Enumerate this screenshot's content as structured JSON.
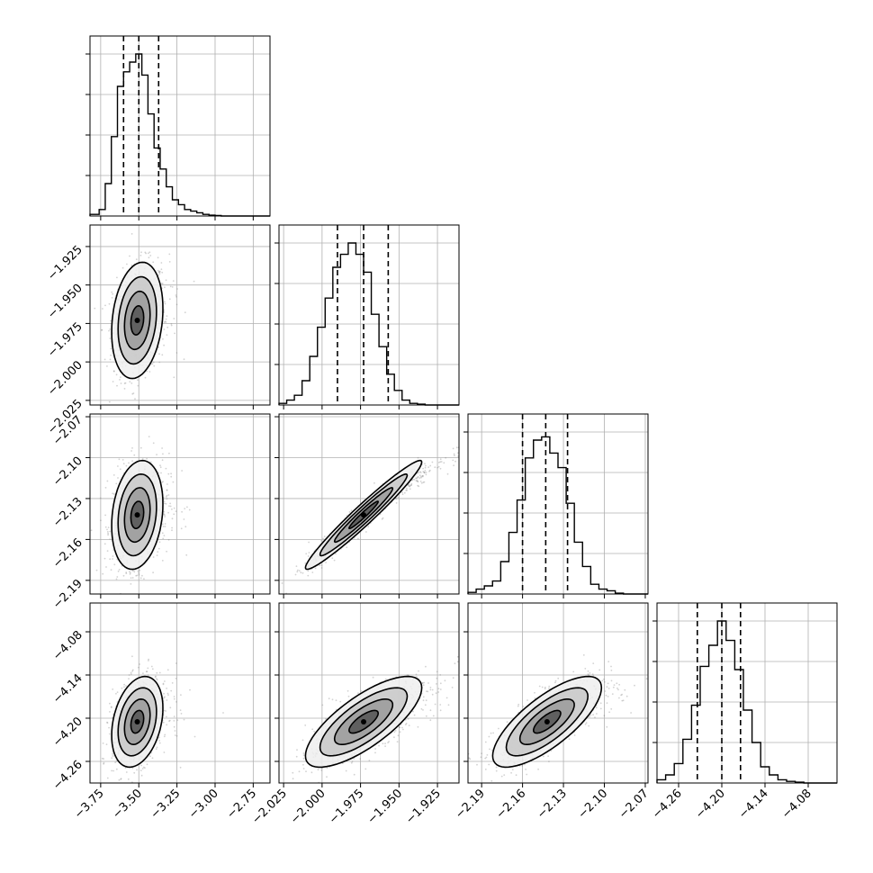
{
  "colors": {
    "ink": "#000000",
    "grid": "#b0b0b0",
    "scatter": "#7f7f7f",
    "bg": "#ffffff"
  },
  "chart_data": {
    "type": "corner",
    "n_params": 4,
    "grid": true,
    "quantiles": [
      0.16,
      0.5,
      0.84
    ],
    "params": [
      {
        "range": [
          -3.82,
          -2.64
        ],
        "ticks": [
          -3.75,
          -3.5,
          -3.25,
          -3.0,
          -2.75
        ],
        "tick_labels": [
          "−3.75",
          "−3.50",
          "−3.25",
          "−3.00",
          "−2.75"
        ],
        "quantile_values": [
          -3.6,
          -3.5,
          -3.37
        ],
        "hist": {
          "edges": [
            -3.82,
            -3.76,
            -3.72,
            -3.68,
            -3.64,
            -3.6,
            -3.56,
            -3.52,
            -3.48,
            -3.44,
            -3.4,
            -3.36,
            -3.32,
            -3.28,
            -3.24,
            -3.2,
            -3.16,
            -3.12,
            -3.08,
            -3.04,
            -3.0,
            -2.96,
            -2.64
          ],
          "counts": [
            0.01,
            0.04,
            0.2,
            0.49,
            0.8,
            0.89,
            0.95,
            1.0,
            0.87,
            0.63,
            0.42,
            0.29,
            0.18,
            0.1,
            0.07,
            0.04,
            0.03,
            0.02,
            0.01,
            0.005,
            0.003,
            0.0
          ]
        }
      },
      {
        "range": [
          -2.028,
          -1.911
        ],
        "ticks": [
          -2.025,
          -2.0,
          -1.975,
          -1.95,
          -1.925
        ],
        "tick_labels": [
          "−2.025",
          "−2.000",
          "−1.975",
          "−1.950",
          "−1.925"
        ],
        "quantile_values": [
          -1.99,
          -1.973,
          -1.957
        ],
        "hist": {
          "edges": [
            -2.028,
            -2.023,
            -2.018,
            -2.013,
            -2.008,
            -2.003,
            -1.998,
            -1.993,
            -1.988,
            -1.983,
            -1.978,
            -1.973,
            -1.968,
            -1.963,
            -1.958,
            -1.953,
            -1.948,
            -1.943,
            -1.938,
            -1.933,
            -1.928,
            -1.911
          ],
          "counts": [
            0.01,
            0.03,
            0.06,
            0.15,
            0.3,
            0.48,
            0.66,
            0.85,
            0.93,
            1.0,
            0.93,
            0.82,
            0.56,
            0.36,
            0.19,
            0.09,
            0.03,
            0.01,
            0.005,
            0.0,
            0.0
          ]
        }
      },
      {
        "range": [
          -2.2,
          -2.068
        ],
        "ticks": [
          -2.19,
          -2.16,
          -2.13,
          -2.1,
          -2.07
        ],
        "tick_labels": [
          "−2.19",
          "−2.16",
          "−2.13",
          "−2.10",
          "−2.07"
        ],
        "quantile_values": [
          -2.16,
          -2.143,
          -2.127
        ],
        "hist": {
          "edges": [
            -2.2,
            -2.194,
            -2.188,
            -2.182,
            -2.176,
            -2.17,
            -2.164,
            -2.158,
            -2.152,
            -2.146,
            -2.14,
            -2.134,
            -2.128,
            -2.122,
            -2.116,
            -2.11,
            -2.104,
            -2.098,
            -2.092,
            -2.086,
            -2.08,
            -2.068
          ],
          "counts": [
            0.01,
            0.03,
            0.05,
            0.08,
            0.2,
            0.38,
            0.58,
            0.84,
            0.95,
            0.97,
            0.87,
            0.78,
            0.56,
            0.32,
            0.17,
            0.06,
            0.03,
            0.02,
            0.005,
            0.0,
            0.0
          ]
        }
      },
      {
        "range": [
          -4.29,
          -4.04
        ],
        "ticks": [
          -4.26,
          -4.2,
          -4.14,
          -4.08
        ],
        "tick_labels": [
          "−4.26",
          "−4.20",
          "−4.14",
          "−4.08"
        ],
        "quantile_values": [
          -4.234,
          -4.2,
          -4.174
        ],
        "hist": {
          "edges": [
            -4.29,
            -4.278,
            -4.266,
            -4.254,
            -4.242,
            -4.23,
            -4.218,
            -4.206,
            -4.194,
            -4.182,
            -4.17,
            -4.158,
            -4.146,
            -4.134,
            -4.122,
            -4.11,
            -4.098,
            -4.086,
            -4.074,
            -4.04
          ],
          "counts": [
            0.02,
            0.05,
            0.12,
            0.27,
            0.48,
            0.72,
            0.85,
            1.0,
            0.88,
            0.7,
            0.45,
            0.25,
            0.1,
            0.05,
            0.02,
            0.01,
            0.005,
            0.0,
            0.0
          ]
        }
      }
    ],
    "pairs": [
      {
        "row": 1,
        "col": 0,
        "mean": [
          -3.51,
          -1.973
        ],
        "sd": [
          0.08,
          0.018
        ],
        "corr": 0.2
      },
      {
        "row": 2,
        "col": 0,
        "mean": [
          -3.51,
          -2.142
        ],
        "sd": [
          0.08,
          0.019
        ],
        "corr": 0.2
      },
      {
        "row": 2,
        "col": 1,
        "mean": [
          -1.973,
          -2.142
        ],
        "sd": [
          0.018,
          0.019
        ],
        "corr": 0.97
      },
      {
        "row": 3,
        "col": 0,
        "mean": [
          -3.51,
          -4.205
        ],
        "sd": [
          0.08,
          0.03
        ],
        "corr": 0.3
      },
      {
        "row": 3,
        "col": 1,
        "mean": [
          -1.973,
          -4.205
        ],
        "sd": [
          0.018,
          0.03
        ],
        "corr": 0.75
      },
      {
        "row": 3,
        "col": 2,
        "mean": [
          -2.142,
          -4.205
        ],
        "sd": [
          0.019,
          0.03
        ],
        "corr": 0.75
      }
    ],
    "contour_levels": [
      0.5,
      1.0,
      1.5,
      2.0
    ]
  }
}
